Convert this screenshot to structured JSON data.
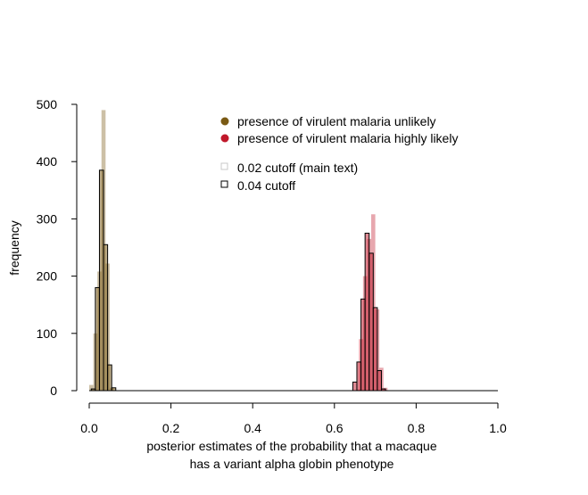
{
  "chart_data": {
    "type": "bar",
    "subtype": "overlaid histogram",
    "title": "",
    "xlabel_lines": [
      "posterior estimates of the probability that a macaque",
      "has a variant alpha globin phenotype"
    ],
    "ylabel": "frequency",
    "xlim": [
      0.0,
      1.0
    ],
    "ylim": [
      0,
      500
    ],
    "x_ticks": [
      "0.0",
      "0.2",
      "0.4",
      "0.6",
      "0.8",
      "1.0"
    ],
    "y_ticks": [
      "0",
      "100",
      "200",
      "300",
      "400",
      "500"
    ],
    "grid": false,
    "legend_placement": "top-center",
    "legend": {
      "groups": [
        {
          "label": "presence of virulent malaria unlikely",
          "color": "#7a5a14"
        },
        {
          "label": "presence of virulent malaria highly likely",
          "color": "#c0182a"
        }
      ],
      "cutoffs": [
        {
          "label": "0.02 cutoff (main text)",
          "style": "light-outline"
        },
        {
          "label": "0.04 cutoff",
          "style": "dark-outline"
        }
      ]
    },
    "bin_width": 0.01,
    "series": [
      {
        "name": "presence of virulent malaria unlikely",
        "cutoff": "0.02 cutoff (main text)",
        "color": "#7a5a14",
        "bins": [
          {
            "x": 0.0,
            "count": 10
          },
          {
            "x": 0.01,
            "count": 100
          },
          {
            "x": 0.02,
            "count": 208
          },
          {
            "x": 0.03,
            "count": 490
          },
          {
            "x": 0.04,
            "count": 222
          },
          {
            "x": 0.05,
            "count": 5
          }
        ]
      },
      {
        "name": "presence of virulent malaria unlikely",
        "cutoff": "0.04 cutoff",
        "color": "#7a5a14",
        "bins": [
          {
            "x": 0.005,
            "count": 3
          },
          {
            "x": 0.015,
            "count": 180
          },
          {
            "x": 0.025,
            "count": 385
          },
          {
            "x": 0.035,
            "count": 255
          },
          {
            "x": 0.045,
            "count": 45
          },
          {
            "x": 0.055,
            "count": 5
          }
        ]
      },
      {
        "name": "presence of virulent malaria highly likely",
        "cutoff": "0.02 cutoff (main text)",
        "color": "#c0182a",
        "bins": [
          {
            "x": 0.655,
            "count": 2
          },
          {
            "x": 0.66,
            "count": 90
          },
          {
            "x": 0.67,
            "count": 200
          },
          {
            "x": 0.68,
            "count": 265
          },
          {
            "x": 0.69,
            "count": 308
          },
          {
            "x": 0.7,
            "count": 142
          },
          {
            "x": 0.71,
            "count": 40
          },
          {
            "x": 0.72,
            "count": 5
          }
        ]
      },
      {
        "name": "presence of virulent malaria highly likely",
        "cutoff": "0.04 cutoff",
        "color": "#c0182a",
        "bins": [
          {
            "x": 0.645,
            "count": 15
          },
          {
            "x": 0.655,
            "count": 50
          },
          {
            "x": 0.665,
            "count": 160
          },
          {
            "x": 0.675,
            "count": 275
          },
          {
            "x": 0.685,
            "count": 240
          },
          {
            "x": 0.695,
            "count": 145
          },
          {
            "x": 0.705,
            "count": 35
          },
          {
            "x": 0.715,
            "count": 3
          }
        ]
      }
    ]
  }
}
